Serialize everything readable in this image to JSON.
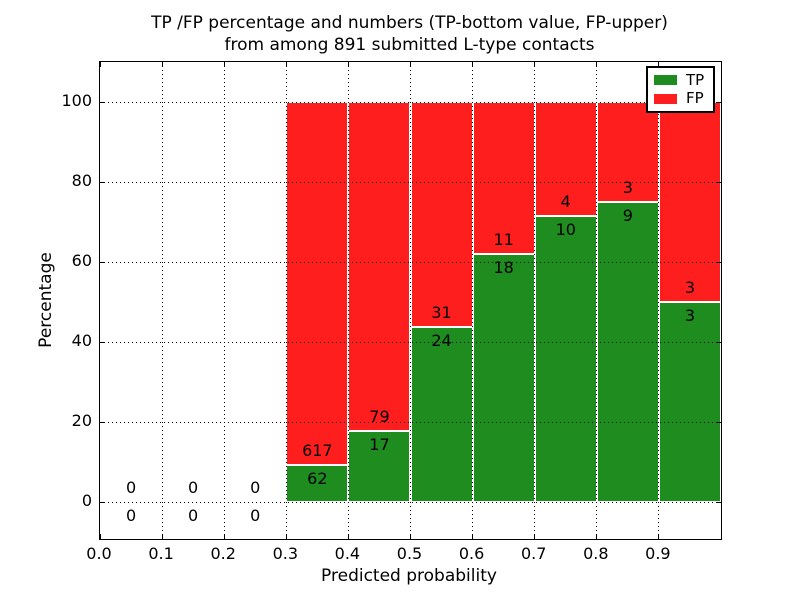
{
  "figure": {
    "title_line1": "TP /FP percentage and numbers (TP-bottom value, FP-upper)",
    "title_line2": "from among 891 submitted L-type contacts"
  },
  "chart_data": {
    "type": "bar",
    "subtype": "stacked-percentage",
    "title": "TP /FP percentage and numbers (TP-bottom value, FP-upper) from among 891 submitted L-type contacts",
    "xlabel": "Predicted probability",
    "ylabel": "Percentage",
    "xlim": [
      0.0,
      1.0
    ],
    "ylim": [
      -9,
      110
    ],
    "grid": "dotted",
    "legend_position": "upper right",
    "total_contacts": 891,
    "x_tick_values": [
      0.0,
      0.1,
      0.2,
      0.3,
      0.4,
      0.5,
      0.6,
      0.7,
      0.8,
      0.9
    ],
    "x_tick_labels": [
      "0.0",
      "0.1",
      "0.2",
      "0.3",
      "0.4",
      "0.5",
      "0.6",
      "0.7",
      "0.8",
      "0.9"
    ],
    "y_tick_values": [
      0,
      20,
      40,
      60,
      80,
      100
    ],
    "y_tick_labels": [
      "0",
      "20",
      "40",
      "60",
      "80",
      "100"
    ],
    "bin_edges": [
      0.0,
      0.1,
      0.2,
      0.3,
      0.4,
      0.5,
      0.6,
      0.7,
      0.8,
      0.9,
      1.0
    ],
    "series": [
      {
        "name": "TP",
        "color": "#1e8c1e",
        "values": [
          0,
          0,
          0,
          62,
          17,
          24,
          18,
          10,
          9,
          3
        ]
      },
      {
        "name": "FP",
        "color": "#ff1e1e",
        "values": [
          0,
          0,
          0,
          617,
          79,
          31,
          11,
          4,
          3,
          3
        ]
      }
    ],
    "legend": [
      {
        "label": "TP",
        "color": "#1e8c1e"
      },
      {
        "label": "FP",
        "color": "#ff1e1e"
      }
    ]
  }
}
